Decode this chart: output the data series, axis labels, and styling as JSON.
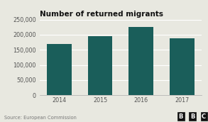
{
  "title": "Number of returned migrants",
  "categories": [
    "2014",
    "2015",
    "2016",
    "2017"
  ],
  "values": [
    170000,
    196000,
    226000,
    188000
  ],
  "bar_color": "#1a5e5a",
  "ylim": [
    0,
    250000
  ],
  "yticks": [
    0,
    50000,
    100000,
    150000,
    200000,
    250000
  ],
  "ytick_labels": [
    "0",
    "50,000",
    "100,000",
    "150,000",
    "200,000",
    "250,000"
  ],
  "source_text": "Source: European Commission",
  "bbc_text": "BBC",
  "background_color": "#e8e8e0",
  "plot_bg_color": "#e8e8e0",
  "grid_color": "#ffffff",
  "title_fontsize": 7.5,
  "tick_fontsize": 5.8,
  "source_fontsize": 4.8
}
